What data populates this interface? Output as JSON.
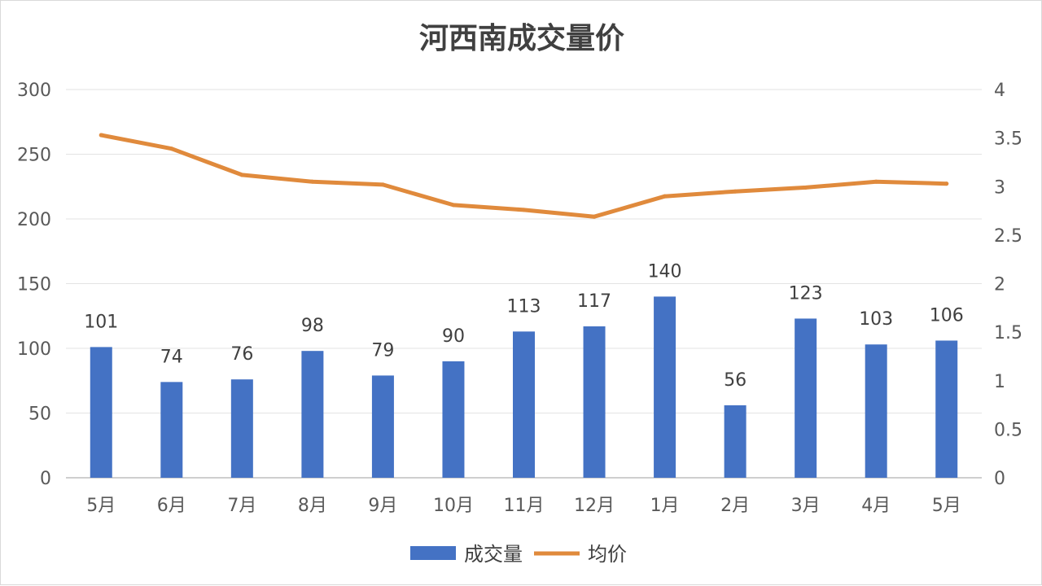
{
  "chart_data": {
    "type": "bar",
    "title": "河西南成交量价",
    "categories": [
      "5月",
      "6月",
      "7月",
      "8月",
      "9月",
      "10月",
      "11月",
      "12月",
      "1月",
      "2月",
      "3月",
      "4月",
      "5月"
    ],
    "series": [
      {
        "name": "成交量",
        "type": "bar",
        "axis": "left",
        "color": "#4472C4",
        "values": [
          101,
          74,
          76,
          98,
          79,
          90,
          113,
          117,
          140,
          56,
          123,
          103,
          106
        ]
      },
      {
        "name": "均价",
        "type": "line",
        "axis": "right",
        "color": "#E08A3C",
        "values": [
          3.53,
          3.39,
          3.12,
          3.05,
          3.02,
          2.81,
          2.76,
          2.69,
          2.9,
          2.95,
          2.99,
          3.05,
          3.03
        ]
      }
    ],
    "y_left": {
      "min": 0,
      "max": 300,
      "ticks": [
        "0",
        "50",
        "100",
        "150",
        "200",
        "250",
        "300"
      ]
    },
    "y_right": {
      "min": 0,
      "max": 4,
      "ticks": [
        "0",
        "0.5",
        "1",
        "1.5",
        "2",
        "2.5",
        "3",
        "3.5",
        "4"
      ]
    },
    "grid": true,
    "legend": "bottom",
    "data_labels": "bar-values"
  }
}
